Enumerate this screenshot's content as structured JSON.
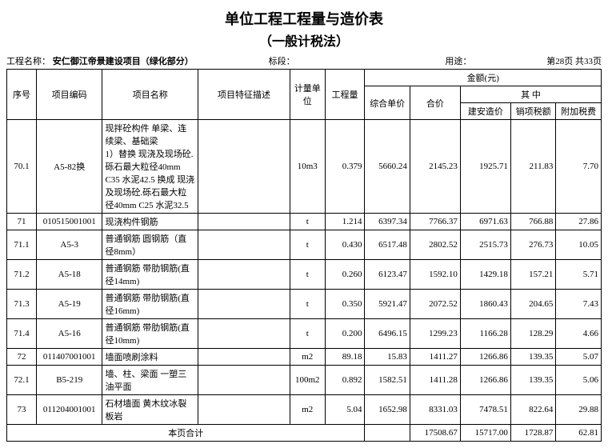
{
  "title": "单位工程工程量与造价表",
  "subtitle": "（一般计税法）",
  "meta": {
    "project_label": "工程名称：",
    "project_name": "安仁御江帝景建设项目（绿化部分）",
    "section_label": "标段：",
    "usage_label": "用途：",
    "page_info": "第28页 共33页"
  },
  "headers": {
    "seq": "序号",
    "code": "项目编码",
    "name": "项目名称",
    "desc": "项目特征描述",
    "unit": "计量单位",
    "qty": "工程量",
    "amount_group": "金额(元)",
    "unit_price": "综合单价",
    "total": "合价",
    "breakdown_group": "其    中",
    "jianan": "建安造价",
    "sales_tax": "销项税额",
    "add_tax": "附加税费"
  },
  "rows": [
    {
      "seq": "70.1",
      "code": "A5-82换",
      "name": "现拌砼构件 单梁、连续梁、基础梁\n1）替换 现浇及现场砼.砾石最大粒径40mm C35 水泥42.5 换成 现浇及现场砼.砾石最大粒径40mm C25 水泥32.5",
      "desc": "",
      "unit": "10m3",
      "qty": "0.379",
      "price": "5660.24",
      "total": "2145.23",
      "ja": "1925.71",
      "tax": "211.83",
      "add": "7.70"
    },
    {
      "seq": "71",
      "code": "010515001001",
      "name": "现浇构件钢筋",
      "desc": "",
      "unit": "t",
      "qty": "1.214",
      "price": "6397.34",
      "total": "7766.37",
      "ja": "6971.63",
      "tax": "766.88",
      "add": "27.86"
    },
    {
      "seq": "71.1",
      "code": "A5-3",
      "name": "普通钢筋 圆钢筋（直径8mm）",
      "desc": "",
      "unit": "t",
      "qty": "0.430",
      "price": "6517.48",
      "total": "2802.52",
      "ja": "2515.73",
      "tax": "276.73",
      "add": "10.05"
    },
    {
      "seq": "71.2",
      "code": "A5-18",
      "name": "普通钢筋 带肋钢筋(直径14mm)",
      "desc": "",
      "unit": "t",
      "qty": "0.260",
      "price": "6123.47",
      "total": "1592.10",
      "ja": "1429.18",
      "tax": "157.21",
      "add": "5.71"
    },
    {
      "seq": "71.3",
      "code": "A5-19",
      "name": "普通钢筋 带肋钢筋(直径16mm)",
      "desc": "",
      "unit": "t",
      "qty": "0.350",
      "price": "5921.47",
      "total": "2072.52",
      "ja": "1860.43",
      "tax": "204.65",
      "add": "7.43"
    },
    {
      "seq": "71.4",
      "code": "A5-16",
      "name": "普通钢筋 带肋钢筋(直径10mm)",
      "desc": "",
      "unit": "t",
      "qty": "0.200",
      "price": "6496.15",
      "total": "1299.23",
      "ja": "1166.28",
      "tax": "128.29",
      "add": "4.66"
    },
    {
      "seq": "72",
      "code": "011407001001",
      "name": "墙面喷刷涂料",
      "desc": "",
      "unit": "m2",
      "qty": "89.18",
      "price": "15.83",
      "total": "1411.27",
      "ja": "1266.86",
      "tax": "139.35",
      "add": "5.07"
    },
    {
      "seq": "72.1",
      "code": "B5-219",
      "name": "墙、柱、梁面 一塑三油平面",
      "desc": "",
      "unit": "100m2",
      "qty": "0.892",
      "price": "1582.51",
      "total": "1411.28",
      "ja": "1266.86",
      "tax": "139.35",
      "add": "5.06"
    },
    {
      "seq": "73",
      "code": "011204001001",
      "name": "石材墙面 黄木纹冰裂板岩",
      "desc": "",
      "unit": "m2",
      "qty": "5.04",
      "price": "1652.98",
      "total": "8331.03",
      "ja": "7478.51",
      "tax": "822.64",
      "add": "29.88"
    }
  ],
  "footer": {
    "label": "本页合计",
    "total": "17508.67",
    "ja": "15717.00",
    "tax": "1728.87",
    "add": "62.81"
  }
}
